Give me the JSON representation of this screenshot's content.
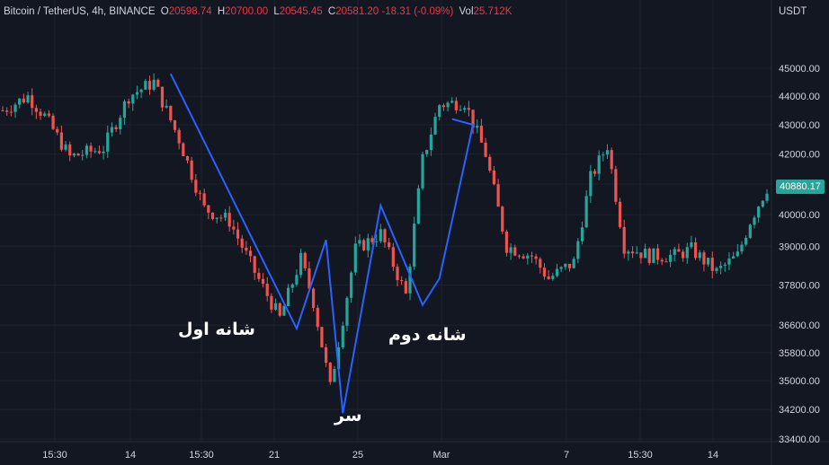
{
  "legend": {
    "symbol": "Bitcoin / TetherUS, 4h, BINANCE",
    "open_label": "O",
    "open": "20598.74",
    "high_label": "H",
    "high": "20700.00",
    "low_label": "L",
    "low": "20545.45",
    "close_label": "C",
    "close": "20581.20",
    "change": "-18.31 (-0.09%)",
    "vol_label": "Vol",
    "vol": "25.712K"
  },
  "axis": {
    "currency": "USDT"
  },
  "last_price": "40880.17",
  "annotations": {
    "left_shoulder": "شانه اول",
    "head": "سر",
    "right_shoulder": "شانه دوم"
  },
  "colors": {
    "background": "#131722",
    "up": "#26a69a",
    "down": "#ef5350",
    "pattern_line": "#2962ff",
    "grid": "#1e222d",
    "text": "#d1d4dc"
  },
  "chart_data": {
    "type": "candlestick",
    "title": "Bitcoin / TetherUS, 4h, BINANCE",
    "y_scale": "log",
    "ylim": [
      33400,
      45900
    ],
    "y_ticks": [
      45000,
      44000,
      43000,
      42000,
      41000,
      40000,
      39000,
      37800,
      36600,
      35800,
      35000,
      34200,
      33400
    ],
    "y_tick_labels": [
      "45000.00",
      "44000.00",
      "43000.00",
      "42000.00",
      "",
      "40000.00",
      "39000.00",
      "37800.00",
      "36600.00",
      "35800.00",
      "35000.00",
      "34200.00",
      "33400.00"
    ],
    "x_tick_labels": [
      "15:30",
      "14",
      "15:30",
      "21",
      "25",
      "Mar",
      "7",
      "15:30",
      "14"
    ],
    "anchors": [
      {
        "i": 0,
        "p": 43500
      },
      {
        "i": 6,
        "p": 44000
      },
      {
        "i": 10,
        "p": 43300
      },
      {
        "i": 16,
        "p": 41900
      },
      {
        "i": 24,
        "p": 42200
      },
      {
        "i": 30,
        "p": 44000
      },
      {
        "i": 36,
        "p": 44500
      },
      {
        "i": 42,
        "p": 42500
      },
      {
        "i": 48,
        "p": 40200
      },
      {
        "i": 54,
        "p": 39800
      },
      {
        "i": 60,
        "p": 38200
      },
      {
        "i": 66,
        "p": 36800
      },
      {
        "i": 71,
        "p": 38600
      },
      {
        "i": 74,
        "p": 37300
      },
      {
        "i": 78,
        "p": 34800
      },
      {
        "i": 84,
        "p": 38900
      },
      {
        "i": 90,
        "p": 39400
      },
      {
        "i": 96,
        "p": 37500
      },
      {
        "i": 100,
        "p": 41800
      },
      {
        "i": 104,
        "p": 43700
      },
      {
        "i": 110,
        "p": 43800
      },
      {
        "i": 115,
        "p": 42000
      },
      {
        "i": 120,
        "p": 39000
      },
      {
        "i": 126,
        "p": 38700
      },
      {
        "i": 130,
        "p": 38000
      },
      {
        "i": 136,
        "p": 38500
      },
      {
        "i": 140,
        "p": 41200
      },
      {
        "i": 144,
        "p": 42300
      },
      {
        "i": 148,
        "p": 39000
      },
      {
        "i": 154,
        "p": 38700
      },
      {
        "i": 160,
        "p": 38700
      },
      {
        "i": 164,
        "p": 38900
      },
      {
        "i": 170,
        "p": 38200
      },
      {
        "i": 175,
        "p": 38700
      },
      {
        "i": 178,
        "p": 39800
      },
      {
        "i": 182,
        "p": 40880
      }
    ],
    "pattern_points": [
      {
        "label": "A",
        "i": 40,
        "p": 44800
      },
      {
        "label": "left_shoulder",
        "i": 70,
        "p": 36500
      },
      {
        "label": "B",
        "i": 77,
        "p": 39200
      },
      {
        "label": "head",
        "i": 81,
        "p": 34100
      },
      {
        "label": "C",
        "i": 90,
        "p": 40300
      },
      {
        "label": "right_shoulder",
        "i": 100,
        "p": 37200
      },
      {
        "label": "D",
        "i": 104,
        "p": 38000
      },
      {
        "label": "E",
        "i": 112,
        "p": 43000
      }
    ],
    "pattern_arrow": {
      "from": {
        "i": 107,
        "p": 43200
      },
      "to": {
        "i": 112,
        "p": 43000
      }
    },
    "candle_count": 183
  }
}
